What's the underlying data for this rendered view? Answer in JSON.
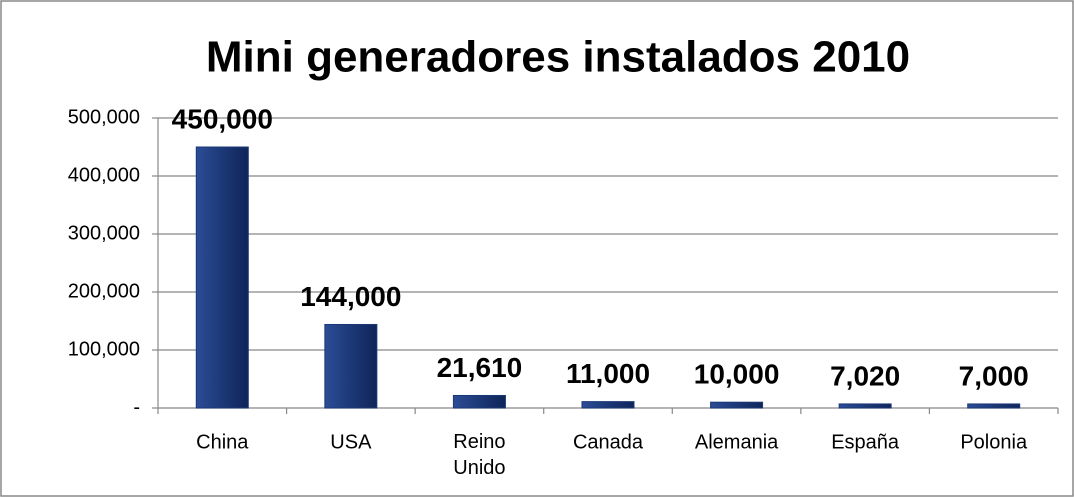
{
  "chart_data": {
    "type": "bar",
    "title": "Mini generadores instalados 2010",
    "categories": [
      "China",
      "USA",
      "Reino Unido",
      "Canada",
      "Alemania",
      "España",
      "Polonia"
    ],
    "values": [
      450000,
      144000,
      21610,
      11000,
      10000,
      7020,
      7000
    ],
    "value_labels": [
      "450,000",
      "144,000",
      "21,610",
      "11,000",
      "10,000",
      "7,020",
      "7,000"
    ],
    "color": "#1c3877",
    "ylim": [
      0,
      500000
    ],
    "yticks": [
      {
        "value": 0,
        "label": "-"
      },
      {
        "value": 100000,
        "label": "100,000"
      },
      {
        "value": 200000,
        "label": "200,000"
      },
      {
        "value": 300000,
        "label": "300,000"
      },
      {
        "value": 400000,
        "label": "400,000"
      },
      {
        "value": 500000,
        "label": "500,000"
      }
    ],
    "grid": true
  }
}
